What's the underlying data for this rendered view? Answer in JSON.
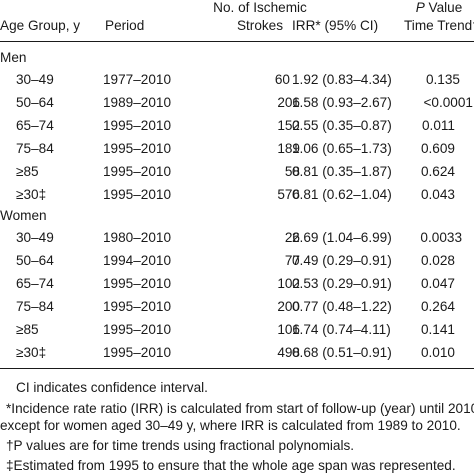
{
  "table": {
    "headers": {
      "age_group": "Age Group, y",
      "period": "Period",
      "strokes_line1": "No. of Ischemic",
      "strokes_line2": "Strokes",
      "irr": "IRR* (95% CI)",
      "p_line1_italic": "P",
      "p_line1_rest": " Value",
      "p_line2": "Time Trend†"
    },
    "groups": [
      {
        "label": "Men",
        "rows": [
          {
            "age": "30–49",
            "period": "1977–2010",
            "strokes": "60",
            "irr": "1.92 (0.83–4.34)",
            "p": "0.135"
          },
          {
            "age": "50–64",
            "period": "1989–2010",
            "strokes": "206",
            "irr": "1.58 (0.93–2.67)",
            "p": "<0.0001"
          },
          {
            "age": "65–74",
            "period": "1995–2010",
            "strokes": "152",
            "irr": "0.55 (0.35–0.87)",
            "p": "0.011"
          },
          {
            "age": "75–84",
            "period": "1995–2010",
            "strokes": "189",
            "irr": "1.06 (0.65–1.73)",
            "p": "0.609"
          },
          {
            "age": "≥85",
            "period": "1995–2010",
            "strokes": "58",
            "irr": "0.81 (0.35–1.87)",
            "p": "0.624"
          },
          {
            "age": "≥30‡",
            "period": "1995–2010",
            "strokes": "576",
            "irr": "0.81 (0.62–1.04)",
            "p": "0.043"
          }
        ]
      },
      {
        "label": "Women",
        "rows": [
          {
            "age": "30–49",
            "period": "1980–2010",
            "strokes": "26",
            "irr": "2.69 (1.04–6.99)",
            "p": "0.0033"
          },
          {
            "age": "50–64",
            "period": "1994–2010",
            "strokes": "77",
            "irr": "0.49 (0.29–0.91)",
            "p": "0.028"
          },
          {
            "age": "65–74",
            "period": "1995–2010",
            "strokes": "102",
            "irr": "0.53 (0.29–0.91)",
            "p": "0.047"
          },
          {
            "age": "75–84",
            "period": "1995–2010",
            "strokes": "200",
            "irr": "0.77 (0.48–1.22)",
            "p": "0.264"
          },
          {
            "age": "≥85",
            "period": "1995–2010",
            "strokes": "106",
            "irr": "1.74 (0.74–4.11)",
            "p": "0.141"
          },
          {
            "age": "≥30‡",
            "period": "1995–2010",
            "strokes": "498",
            "irr": "0.68 (0.51–0.91)",
            "p": "0.010"
          }
        ]
      }
    ]
  },
  "footnotes": [
    "CI indicates confidence interval.",
    "*Incidence rate ratio (IRR) is calculated from start of follow-up (year) until 2010",
    "except for women aged 30–49 y, where IRR is calculated from 1989 to 2010.",
    "†P values are for time trends using fractional polynomials.",
    "‡Estimated from 1995 to ensure that the whole age span was represented."
  ]
}
